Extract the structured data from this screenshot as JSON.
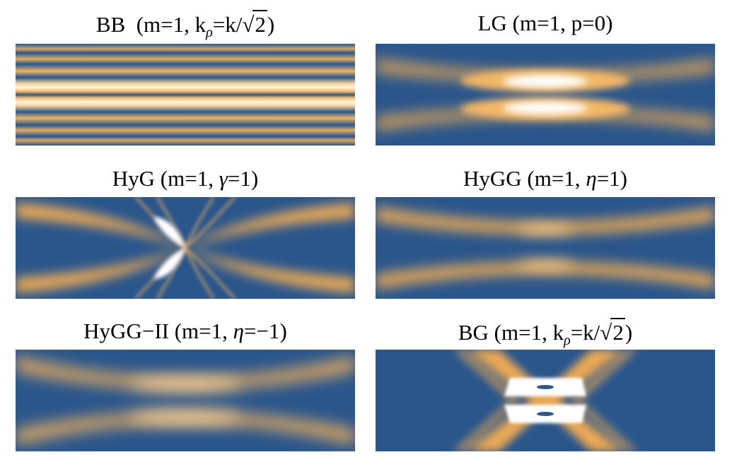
{
  "panels": [
    {
      "id": "bb",
      "title_parts": [
        "BB",
        "(m=1, k",
        "ρ",
        "=k/",
        "2",
        ")"
      ]
    },
    {
      "id": "lg",
      "title": "LG  (m=1, p=0)"
    },
    {
      "id": "hyg",
      "title_parts": [
        "HyG  (m=1, ",
        "γ",
        "=1)"
      ]
    },
    {
      "id": "hygg",
      "title_parts": [
        "HyGG  (m=1, ",
        "η",
        "=1)"
      ]
    },
    {
      "id": "hygg2",
      "title_parts": [
        "HyGG−II  (m=1, ",
        "η",
        "=−1)"
      ]
    },
    {
      "id": "bg",
      "title_parts": [
        "BG  (m=1, k",
        "ρ",
        "=k/",
        "2",
        ")"
      ]
    }
  ],
  "colors": {
    "dark": "#2a568c",
    "light": "#f2b462",
    "peak": "#ffffff"
  }
}
